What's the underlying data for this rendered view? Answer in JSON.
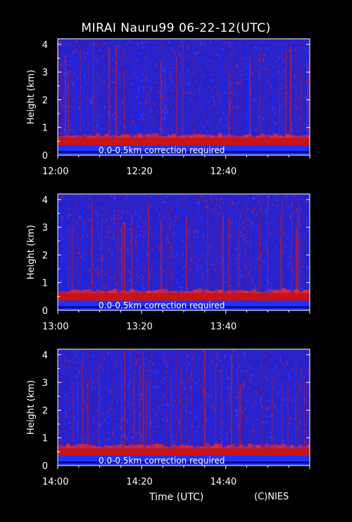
{
  "title": "MIRAI Nauru99 06-22-12(UTC)",
  "xaxis_title": "Time (UTC)",
  "credit": "(C)NIES",
  "colors": {
    "background": "#000000",
    "noise": "#2a22c8",
    "signal": "#c81414",
    "surface": "#1e32ff",
    "text": "#ffffff"
  },
  "chart_data": [
    {
      "type": "heatmap",
      "ylabel": "Height (km)",
      "ylim": [
        0,
        4.2
      ],
      "yticks": [
        "0",
        "1",
        "2",
        "3",
        "4"
      ],
      "xticks": [
        "12:00",
        "12:20",
        "12:40"
      ],
      "xlim_minutes": [
        0,
        60
      ],
      "annotation": "0.0-0.5km correction required",
      "cloud_layer": {
        "bottom_km": 0.35,
        "top_km": 0.62
      }
    },
    {
      "type": "heatmap",
      "ylabel": "Height (km)",
      "ylim": [
        0,
        4.2
      ],
      "yticks": [
        "0",
        "1",
        "2",
        "3",
        "4"
      ],
      "xticks": [
        "13:00",
        "13:20",
        "13:40"
      ],
      "xlim_minutes": [
        0,
        60
      ],
      "annotation": "0.0-0.5km correction required",
      "cloud_layer": {
        "bottom_km": 0.35,
        "top_km": 0.62
      }
    },
    {
      "type": "heatmap",
      "ylabel": "Height (km)",
      "ylim": [
        0,
        4.2
      ],
      "yticks": [
        "0",
        "1",
        "2",
        "3",
        "4"
      ],
      "xticks": [
        "14:00",
        "14:20",
        "14:40"
      ],
      "xlim_minutes": [
        0,
        60
      ],
      "annotation": "0.0-0.5km correction required",
      "cloud_layer": {
        "bottom_km": 0.35,
        "top_km": 0.62
      }
    }
  ]
}
